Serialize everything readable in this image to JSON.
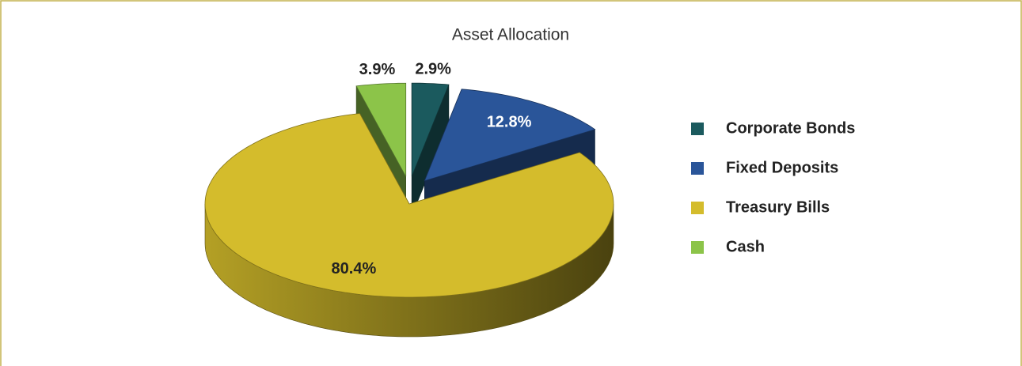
{
  "chart_data": {
    "type": "pie",
    "title": "Asset Allocation",
    "categories": [
      "Corporate Bonds",
      "Fixed Deposits",
      "Treasury Bills",
      "Cash"
    ],
    "values": [
      2.9,
      12.8,
      80.4,
      3.9
    ],
    "value_labels": [
      "2.9%",
      "12.8%",
      "80.4%",
      "3.9%"
    ],
    "colors": [
      "#1b5a5e",
      "#2a5599",
      "#d4bc2c",
      "#8cc449"
    ],
    "legend": "right"
  }
}
